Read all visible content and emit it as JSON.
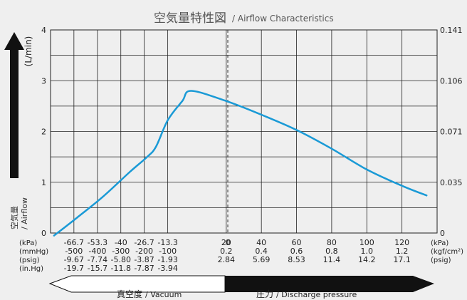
{
  "chart_data": {
    "type": "line",
    "title": "空気量特性図",
    "subtitle": "/ Airflow Characteristics",
    "ylabel": "(L/min)",
    "ylabel_jp": "空気量",
    "ylabel_en": "/ Airflow",
    "yticks_left": [
      "0",
      "1",
      "2",
      "3",
      "4"
    ],
    "yticks_right": [
      "0",
      "0.035",
      "0.071",
      "0.106",
      "0.141"
    ],
    "ylim": [
      0,
      4
    ],
    "xlim": [
      -80,
      140
    ],
    "grid": true,
    "vacuum_axis": {
      "values_kpa": [
        -66.7,
        -53.3,
        -40,
        -26.7,
        -13.3
      ],
      "rows": [
        {
          "unit": "(kPa)",
          "labels": [
            "-66.7",
            "-53.3",
            "-40",
            "-26.7",
            "-13.3"
          ]
        },
        {
          "unit": "(mmHg)",
          "labels": [
            "-500",
            "-400",
            "-300",
            "-200",
            "-100"
          ]
        },
        {
          "unit": "(psig)",
          "labels": [
            "-9.67",
            "-7.74",
            "-5.80",
            "-3.87",
            "-1.93"
          ]
        },
        {
          "unit": "(in.Hg)",
          "labels": [
            "-19.7",
            "-15.7",
            "-11.8",
            "-7.87",
            "-3.94"
          ]
        }
      ]
    },
    "zero_label": "0",
    "pressure_axis": {
      "values_kpa": [
        20,
        40,
        60,
        80,
        100,
        120
      ],
      "rows": [
        {
          "unit": "(kPa)",
          "labels": [
            "20",
            "40",
            "60",
            "80",
            "100",
            "120"
          ]
        },
        {
          "unit": "(kgf/cm²)",
          "labels": [
            "0.2",
            "0.4",
            "0.6",
            "0.8",
            "1.0",
            "1.2"
          ]
        },
        {
          "unit": "(psig)",
          "labels": [
            "2.84",
            "5.69",
            "8.53",
            "11.4",
            "14.2",
            "17.1"
          ]
        }
      ]
    },
    "series": [
      {
        "color": "#1a9ad6",
        "x": [
          -78,
          -65,
          -50,
          -35,
          -25,
          -20,
          -13.3,
          -5,
          0,
          20,
          40,
          60,
          80,
          100,
          120,
          134
        ],
        "y": [
          -0.05,
          0.3,
          0.72,
          1.2,
          1.5,
          1.7,
          2.22,
          2.6,
          2.8,
          2.6,
          2.33,
          2.03,
          1.66,
          1.25,
          0.93,
          0.74
        ]
      }
    ],
    "footer": {
      "vacuum_label_jp": "真空度",
      "vacuum_label_en": "/ Vacuum",
      "pressure_label_jp": "圧力",
      "pressure_label_en": "/ Discharge pressure"
    }
  }
}
